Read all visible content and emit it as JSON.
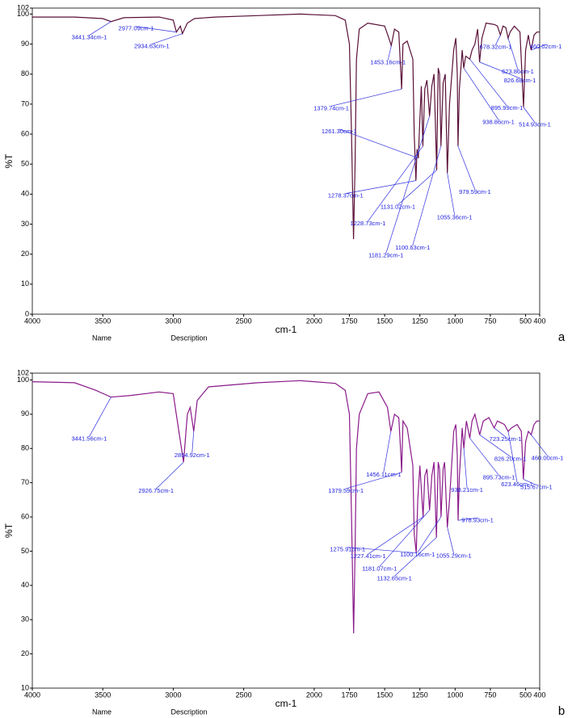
{
  "chart_data": [
    {
      "type": "line",
      "panel_label": "a",
      "x_label": "cm-1",
      "y_label": "%T",
      "footer_labels": [
        "Name",
        "Description"
      ],
      "color": "#5a1038",
      "xlim": [
        4000,
        400
      ],
      "xticks": [
        4000,
        3500,
        3000,
        2500,
        2000,
        1750,
        1500,
        1250,
        1000,
        750,
        500,
        400
      ],
      "ylim": [
        0,
        102
      ],
      "yticks": [
        0,
        10,
        20,
        30,
        40,
        50,
        60,
        70,
        80,
        90,
        100,
        102
      ],
      "x": [
        4000,
        3700,
        3500,
        3441.34,
        3350,
        3100,
        3000,
        2977.09,
        2950,
        2934.63,
        2900,
        2850,
        2700,
        2400,
        2100,
        2000,
        1850,
        1780,
        1750,
        1735,
        1720.74,
        1710,
        1700,
        1680,
        1620,
        1500,
        1470,
        1453.16,
        1430,
        1400,
        1385,
        1379.74,
        1370,
        1340,
        1300,
        1290,
        1278.37,
        1270,
        1261.3,
        1250,
        1240,
        1228.73,
        1215,
        1200,
        1181.29,
        1165,
        1150,
        1131.02,
        1120,
        1110,
        1100.63,
        1085,
        1070,
        1055.36,
        1040,
        1010,
        995,
        985,
        979.59,
        970,
        950,
        938.86,
        925,
        895.99,
        880,
        860,
        840,
        826.68,
        810,
        780,
        720,
        700,
        678.32,
        660,
        640,
        623.86,
        610,
        580,
        540,
        514.93,
        500,
        480,
        470,
        460.02,
        440,
        420,
        400
      ],
      "values": [
        99,
        99,
        98.5,
        97.5,
        98.8,
        99,
        98,
        94,
        96,
        93.5,
        97,
        98.5,
        99,
        99.5,
        100,
        99.8,
        99.5,
        98,
        90,
        60,
        25,
        50,
        85,
        95,
        97,
        96,
        92,
        89.5,
        95,
        94,
        80,
        75,
        90,
        91,
        85,
        60,
        44.5,
        55,
        52,
        65,
        76,
        56,
        75,
        78,
        66,
        76,
        80,
        48,
        82,
        80,
        56,
        77,
        80,
        47,
        70,
        88,
        92,
        80,
        56,
        75,
        88,
        82,
        86,
        85,
        88,
        90,
        95,
        84,
        92,
        97,
        96.5,
        96,
        93,
        96,
        95.5,
        92,
        94,
        96,
        94,
        69,
        88,
        93,
        90,
        88,
        93,
        94,
        94
      ],
      "annotations": [
        {
          "text": "3441.34cm-1",
          "x": 3441.34,
          "y": 97.5
        },
        {
          "text": "2977.09cm-1",
          "x": 2977.09,
          "y": 94
        },
        {
          "text": "2934.63cm-1",
          "x": 2934.63,
          "y": 93.5
        },
        {
          "text": "1453.16cm-1",
          "x": 1453.16,
          "y": 89.5
        },
        {
          "text": "1379.74cm-1",
          "x": 1379.74,
          "y": 75
        },
        {
          "text": "1261.30cm-1",
          "x": 1261.3,
          "y": 52
        },
        {
          "text": "1278.37cm-1",
          "x": 1278.37,
          "y": 44.5
        },
        {
          "text": "1228.73cm-1",
          "x": 1228.73,
          "y": 56
        },
        {
          "text": "1181.29cm-1",
          "x": 1181.29,
          "y": 66
        },
        {
          "text": "1131.02cm-1",
          "x": 1131.02,
          "y": 48
        },
        {
          "text": "1100.63cm-1",
          "x": 1100.63,
          "y": 56
        },
        {
          "text": "1055.36cm-1",
          "x": 1055.36,
          "y": 47
        },
        {
          "text": "979.59cm-1",
          "x": 979.59,
          "y": 56
        },
        {
          "text": "938.86cm-1",
          "x": 938.86,
          "y": 82
        },
        {
          "text": "895.99cm-1",
          "x": 895.99,
          "y": 85
        },
        {
          "text": "826.68cm-1",
          "x": 826.68,
          "y": 84
        },
        {
          "text": "678.32cm-1",
          "x": 678.32,
          "y": 93
        },
        {
          "text": "623.86cm-1",
          "x": 623.86,
          "y": 92
        },
        {
          "text": "514.93cm-1",
          "x": 514.93,
          "y": 69
        },
        {
          "text": "460.02cm-1",
          "x": 460.02,
          "y": 88
        }
      ]
    },
    {
      "type": "line",
      "panel_label": "b",
      "x_label": "cm-1",
      "y_label": "%T",
      "footer_labels": [
        "Name",
        "Description"
      ],
      "color": "#8a1a8a",
      "xlim": [
        4000,
        400
      ],
      "xticks": [
        4000,
        3500,
        3000,
        2500,
        2000,
        1750,
        1500,
        1250,
        1000,
        750,
        500,
        400
      ],
      "ylim": [
        10,
        102
      ],
      "yticks": [
        10,
        20,
        30,
        40,
        50,
        60,
        70,
        80,
        90,
        100,
        102
      ],
      "x": [
        4000,
        3700,
        3550,
        3441.56,
        3300,
        3100,
        3000,
        2960,
        2926.75,
        2900,
        2880,
        2854.92,
        2830,
        2750,
        2400,
        2100,
        2000,
        1850,
        1780,
        1750,
        1735,
        1720.45,
        1710,
        1700,
        1680,
        1620,
        1540,
        1480,
        1456.11,
        1430,
        1400,
        1385,
        1379.59,
        1370,
        1340,
        1300,
        1290,
        1275.91,
        1265,
        1250,
        1227.41,
        1215,
        1200,
        1181.07,
        1165,
        1150,
        1132.65,
        1120,
        1110,
        1100.16,
        1085,
        1075,
        1055.29,
        1040,
        1010,
        995,
        985,
        978.93,
        970,
        950,
        938.21,
        920,
        895.73,
        880,
        860,
        826.2,
        800,
        760,
        723.25,
        700,
        650,
        623.46,
        600,
        560,
        530,
        515.67,
        500,
        480,
        460,
        440,
        420,
        400
      ],
      "values": [
        99.5,
        99.2,
        97,
        95,
        95.5,
        96.5,
        96,
        85,
        76,
        90,
        92,
        85,
        94,
        98,
        99.2,
        99.8,
        99.5,
        99,
        97,
        90,
        60,
        26,
        50,
        80,
        90,
        96,
        96.5,
        92,
        85,
        90,
        89,
        78,
        73,
        88,
        86,
        75,
        55,
        49.5,
        65,
        75,
        60,
        72,
        74,
        62,
        72,
        76,
        54,
        76,
        74,
        60,
        74,
        76,
        57,
        65,
        85,
        87,
        78,
        59,
        72,
        86,
        80,
        88,
        83,
        88,
        90,
        84,
        88,
        89,
        86,
        88,
        87,
        85,
        86,
        87,
        85,
        71,
        82,
        85,
        84,
        87,
        88,
        88
      ],
      "annotations": [
        {
          "text": "3441.56cm-1",
          "x": 3441.56,
          "y": 95
        },
        {
          "text": "2926.75cm-1",
          "x": 2926.75,
          "y": 76
        },
        {
          "text": "2854.92cm-1",
          "x": 2854.92,
          "y": 85
        },
        {
          "text": "1456.11cm-1",
          "x": 1456.11,
          "y": 85
        },
        {
          "text": "1379.59cm-1",
          "x": 1379.59,
          "y": 73
        },
        {
          "text": "1275.91cm-1",
          "x": 1275.91,
          "y": 49.5
        },
        {
          "text": "1227.41cm-1",
          "x": 1227.41,
          "y": 60
        },
        {
          "text": "1181.07cm-1",
          "x": 1181.07,
          "y": 62
        },
        {
          "text": "1132.65cm-1",
          "x": 1132.65,
          "y": 54
        },
        {
          "text": "1100.16cm-1",
          "x": 1100.16,
          "y": 60
        },
        {
          "text": "1055.29cm-1",
          "x": 1055.29,
          "y": 57
        },
        {
          "text": "978.93cm-1",
          "x": 978.93,
          "y": 59
        },
        {
          "text": "938.21cm-1",
          "x": 938.21,
          "y": 80
        },
        {
          "text": "895.73cm-1",
          "x": 895.73,
          "y": 83
        },
        {
          "text": "826.20cm-1",
          "x": 826.2,
          "y": 84
        },
        {
          "text": "723.25cm-1",
          "x": 723.25,
          "y": 86
        },
        {
          "text": "623.46cm-1",
          "x": 623.46,
          "y": 85
        },
        {
          "text": "515.67cm-1",
          "x": 515.67,
          "y": 71
        },
        {
          "text": "460.00cm-1",
          "x": 460,
          "y": 84
        }
      ]
    }
  ]
}
